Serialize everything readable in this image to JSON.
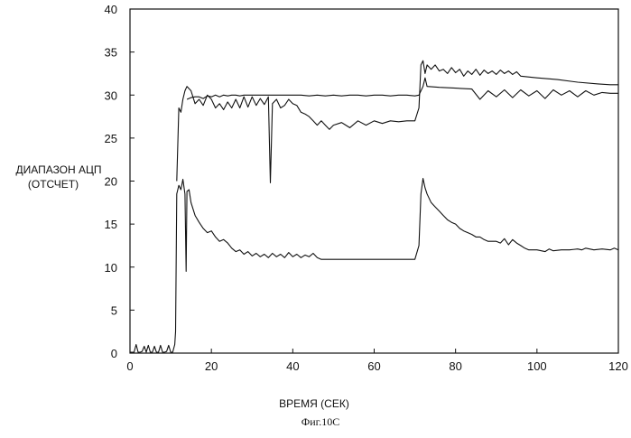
{
  "chart_data": {
    "type": "line",
    "title": "",
    "xlabel": "ВРЕМЯ (СЕК)",
    "ylabel_line1": "ДИАПАЗОН АЦП",
    "ylabel_line2": "(ОТСЧЕТ)",
    "caption": "Фиг.10С",
    "xlim": [
      0,
      120
    ],
    "ylim": [
      0,
      40
    ],
    "x_ticks": [
      0,
      20,
      40,
      60,
      80,
      100,
      120
    ],
    "y_ticks": [
      0,
      5,
      10,
      15,
      20,
      25,
      30,
      35,
      40
    ],
    "grid": false,
    "legend": "none",
    "series": [
      {
        "x": [
          0,
          1,
          1.5,
          2,
          2.5,
          3,
          3.5,
          4,
          4.5,
          5,
          5.5,
          6,
          6.5,
          7,
          7.5,
          8,
          8.5,
          9,
          9.5,
          10,
          10.5,
          11,
          11.2,
          11.5,
          12,
          12.5,
          13,
          13.5,
          13.8,
          14,
          14.5,
          15,
          16,
          17,
          18,
          19,
          20,
          21,
          22,
          23,
          24,
          25,
          26,
          27,
          28,
          29,
          30,
          31,
          32,
          33,
          34,
          35,
          36,
          37,
          38,
          39,
          40,
          41,
          42,
          43,
          44,
          45,
          46,
          47,
          50,
          55,
          60,
          65,
          70,
          71,
          71.5,
          72,
          72.5,
          73,
          74,
          75,
          76,
          77,
          78,
          79,
          80,
          81,
          82,
          83,
          84,
          85,
          86,
          87,
          88,
          89,
          90,
          91,
          92,
          93,
          94,
          95,
          96,
          97,
          98,
          100,
          102,
          103,
          104,
          106,
          108,
          110,
          111,
          112,
          114,
          116,
          118,
          119,
          120
        ],
        "y": [
          0.1,
          0.1,
          1.0,
          0.1,
          0.1,
          0.2,
          0.8,
          0.1,
          0.9,
          0.1,
          0.1,
          0.8,
          0.1,
          0.1,
          0.9,
          0.1,
          0.1,
          0.2,
          0.9,
          0.1,
          0.1,
          1.0,
          2.5,
          18.5,
          19.5,
          19,
          20.2,
          18.5,
          9.5,
          18.8,
          19,
          17.5,
          16,
          15.2,
          14.5,
          14,
          14.2,
          13.5,
          13,
          13.2,
          12.8,
          12.2,
          11.8,
          12,
          11.5,
          11.8,
          11.3,
          11.6,
          11.2,
          11.5,
          11.1,
          11.6,
          11.2,
          11.5,
          11.1,
          11.7,
          11.2,
          11.5,
          11.1,
          11.4,
          11.2,
          11.6,
          11.1,
          10.9,
          10.9,
          10.9,
          10.9,
          10.9,
          10.9,
          12.5,
          18.5,
          20.3,
          19.2,
          18.5,
          17.5,
          17,
          16.5,
          16,
          15.5,
          15.2,
          15,
          14.5,
          14.2,
          14,
          13.8,
          13.5,
          13.5,
          13.2,
          13,
          13,
          13,
          12.8,
          13.3,
          12.6,
          13.2,
          12.8,
          12.5,
          12.2,
          12,
          12,
          11.8,
          12.1,
          11.9,
          12,
          12,
          12.1,
          12,
          12.2,
          12,
          12.1,
          12,
          12.2,
          12
        ],
        "name": ""
      },
      {
        "x": [
          11.5,
          12,
          12.5,
          13,
          13.5,
          14,
          15,
          16,
          17,
          18,
          19,
          20,
          21,
          22,
          23,
          24,
          25,
          26,
          27,
          28,
          29,
          30,
          31,
          32,
          33,
          34,
          34.5,
          35,
          36,
          37,
          38,
          39,
          40,
          41,
          42,
          43,
          44,
          45,
          46,
          47,
          48,
          49,
          50,
          52,
          54,
          56,
          58,
          60,
          62,
          64,
          66,
          68,
          70,
          71,
          71.5,
          72,
          72.5,
          73,
          74,
          75,
          76,
          77,
          78,
          79,
          80,
          81,
          82,
          83,
          84,
          85,
          86,
          87,
          88,
          89,
          90,
          91,
          92,
          93,
          94,
          95,
          96,
          100,
          105,
          110,
          115,
          118,
          120
        ],
        "y": [
          20,
          28.5,
          28,
          29.5,
          30.5,
          31,
          30.5,
          29,
          29.5,
          28.8,
          30,
          29.5,
          28.5,
          29,
          28.3,
          29.2,
          28.5,
          29.5,
          28.5,
          29.8,
          28.6,
          29.8,
          28.8,
          29.6,
          28.9,
          29.8,
          19.8,
          29,
          29.5,
          28.5,
          28.8,
          29.5,
          29,
          28.8,
          28,
          27.8,
          27.5,
          27,
          26.5,
          27,
          26.5,
          26,
          26.5,
          26.8,
          26.2,
          27,
          26.5,
          27,
          26.7,
          27,
          26.9,
          27,
          27,
          28.5,
          33.5,
          34,
          32.5,
          33.5,
          33,
          33.5,
          32.8,
          33,
          32.5,
          33.2,
          32.6,
          33,
          32.2,
          32.8,
          32.4,
          33,
          32.3,
          32.9,
          32.5,
          32.8,
          32.4,
          32.9,
          32.5,
          32.8,
          32.4,
          32.7,
          32.2,
          32,
          31.8,
          31.5,
          31.3,
          31.2,
          31.2
        ],
        "name": ""
      },
      {
        "x": [
          14,
          15,
          16,
          17,
          18,
          19,
          20,
          21,
          22,
          23,
          24,
          25,
          26,
          27,
          28,
          29,
          30,
          32,
          34,
          36,
          38,
          40,
          42,
          44,
          46,
          48,
          50,
          52,
          54,
          56,
          58,
          60,
          62,
          64,
          66,
          68,
          70,
          71,
          72,
          72.5,
          73,
          76,
          80,
          84,
          86,
          88,
          90,
          92,
          94,
          96,
          98,
          100,
          102,
          104,
          106,
          108,
          110,
          112,
          114,
          116,
          118,
          120
        ],
        "y": [
          29.5,
          29.7,
          29.8,
          29.8,
          29.6,
          29.9,
          29.8,
          30,
          29.8,
          30,
          29.9,
          30,
          30,
          29.9,
          30,
          30,
          30,
          30,
          30,
          30,
          30,
          30,
          30,
          29.9,
          30,
          29.9,
          30,
          29.9,
          30,
          30,
          29.9,
          30,
          30,
          29.9,
          30,
          30,
          29.9,
          30,
          31,
          32,
          31,
          30.9,
          30.8,
          30.7,
          29.5,
          30.5,
          29.8,
          30.6,
          29.7,
          30.6,
          29.9,
          30.5,
          29.6,
          30.6,
          30,
          30.5,
          29.8,
          30.5,
          30,
          30.3,
          30.2,
          30.2
        ],
        "name": ""
      }
    ]
  }
}
